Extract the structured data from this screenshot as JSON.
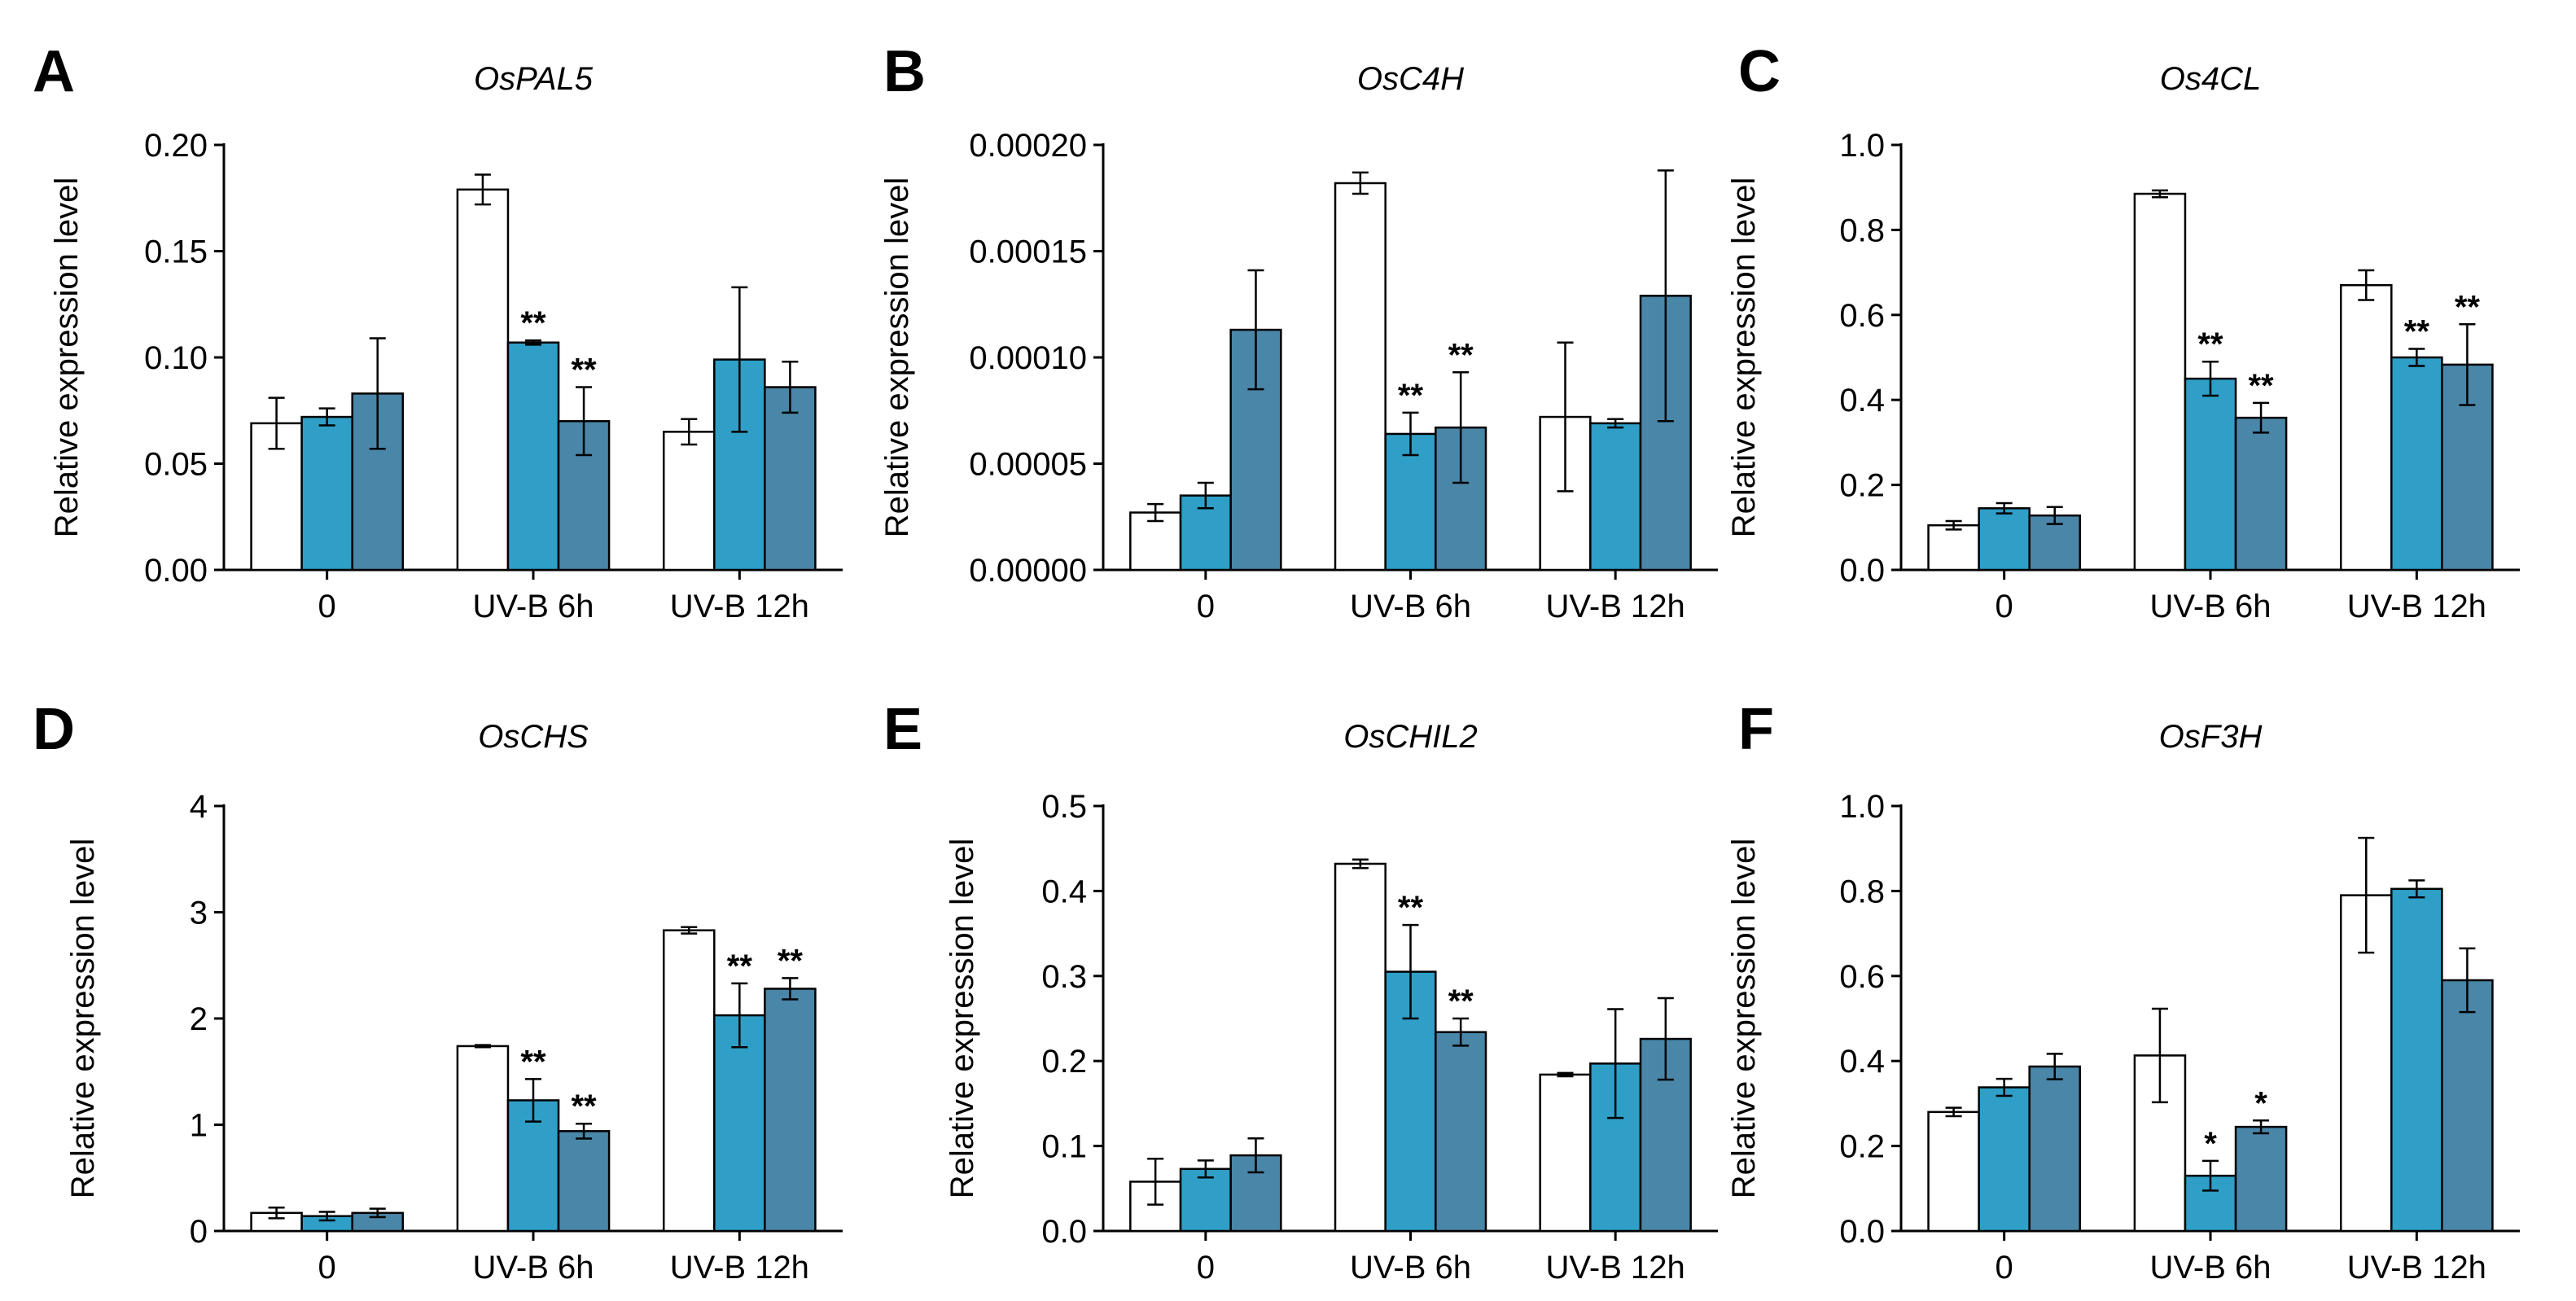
{
  "figure": {
    "series_colors": [
      "#ffffff",
      "#2f9fc7",
      "#4a86a8"
    ],
    "y_axis_title": "Relative expression level"
  },
  "chart_data": [
    {
      "type": "bar",
      "panel": "A",
      "title": "OsPAL5",
      "ylabel": "Relative expression level",
      "categories": [
        "0",
        "UV-B 6h",
        "UV-B 12h"
      ],
      "ylim": [
        0,
        0.2
      ],
      "yticks": [
        "0.00",
        "0.05",
        "0.10",
        "0.15",
        "0.20"
      ],
      "series": [
        {
          "values": [
            0.069,
            0.179,
            0.065
          ],
          "errors": [
            0.012,
            0.007,
            0.006
          ]
        },
        {
          "values": [
            0.072,
            0.107,
            0.099
          ],
          "errors": [
            0.004,
            0.001,
            0.034
          ]
        },
        {
          "values": [
            0.083,
            0.07,
            0.086
          ],
          "errors": [
            0.026,
            0.016,
            0.012
          ]
        }
      ],
      "significance": [
        [
          "",
          "",
          ""
        ],
        [
          "",
          "**",
          ""
        ],
        [
          "",
          "**",
          ""
        ]
      ]
    },
    {
      "type": "bar",
      "panel": "B",
      "title": "OsC4H",
      "ylabel": "Relative expression level",
      "categories": [
        "0",
        "UV-B 6h",
        "UV-B 12h"
      ],
      "ylim": [
        0,
        0.0002
      ],
      "yticks": [
        "0.00000",
        "0.00005",
        "0.00010",
        "0.00015",
        "0.00020"
      ],
      "series": [
        {
          "values": [
            2.7e-05,
            0.000182,
            7.2e-05
          ],
          "errors": [
            4e-06,
            5e-06,
            3.5e-05
          ]
        },
        {
          "values": [
            3.5e-05,
            6.4e-05,
            6.9e-05
          ],
          "errors": [
            6e-06,
            1e-05,
            2e-06
          ]
        },
        {
          "values": [
            0.000113,
            6.7e-05,
            0.000129
          ],
          "errors": [
            2.8e-05,
            2.6e-05,
            5.9e-05
          ]
        }
      ],
      "significance": [
        [
          "",
          "",
          ""
        ],
        [
          "",
          "**",
          ""
        ],
        [
          "",
          "**",
          ""
        ]
      ]
    },
    {
      "type": "bar",
      "panel": "C",
      "title": "Os4CL",
      "ylabel": "Relative expression level",
      "categories": [
        "0",
        "UV-B 6h",
        "UV-B 12h"
      ],
      "ylim": [
        0,
        1.0
      ],
      "yticks": [
        "0.0",
        "0.2",
        "0.4",
        "0.6",
        "0.8",
        "1.0"
      ],
      "series": [
        {
          "values": [
            0.105,
            0.885,
            0.67
          ],
          "errors": [
            0.01,
            0.008,
            0.035
          ]
        },
        {
          "values": [
            0.145,
            0.45,
            0.5
          ],
          "errors": [
            0.012,
            0.04,
            0.02
          ]
        },
        {
          "values": [
            0.128,
            0.358,
            0.483
          ],
          "errors": [
            0.02,
            0.035,
            0.095
          ]
        }
      ],
      "significance": [
        [
          "",
          "",
          ""
        ],
        [
          "",
          "**",
          "**"
        ],
        [
          "",
          "**",
          "**"
        ]
      ]
    },
    {
      "type": "bar",
      "panel": "D",
      "title": "OsCHS",
      "ylabel": "Relative expression level",
      "categories": [
        "0",
        "UV-B 6h",
        "UV-B 12h"
      ],
      "ylim": [
        0,
        4
      ],
      "yticks": [
        "0",
        "1",
        "2",
        "3",
        "4"
      ],
      "series": [
        {
          "values": [
            0.17,
            1.74,
            2.83
          ],
          "errors": [
            0.05,
            0.01,
            0.03
          ]
        },
        {
          "values": [
            0.14,
            1.23,
            2.03
          ],
          "errors": [
            0.04,
            0.2,
            0.3
          ]
        },
        {
          "values": [
            0.17,
            0.94,
            2.28
          ],
          "errors": [
            0.04,
            0.07,
            0.1
          ]
        }
      ],
      "significance": [
        [
          "",
          "",
          ""
        ],
        [
          "",
          "**",
          "**"
        ],
        [
          "",
          "**",
          "**"
        ]
      ]
    },
    {
      "type": "bar",
      "panel": "E",
      "title": "OsCHIL2",
      "ylabel": "Relative expression level",
      "categories": [
        "0",
        "UV-B 6h",
        "UV-B 12h"
      ],
      "ylim": [
        0,
        0.5
      ],
      "yticks": [
        "0.0",
        "0.1",
        "0.2",
        "0.3",
        "0.4",
        "0.5"
      ],
      "series": [
        {
          "values": [
            0.058,
            0.432,
            0.184
          ],
          "errors": [
            0.027,
            0.005,
            0.002
          ]
        },
        {
          "values": [
            0.073,
            0.305,
            0.197
          ],
          "errors": [
            0.01,
            0.055,
            0.064
          ]
        },
        {
          "values": [
            0.089,
            0.234,
            0.226
          ],
          "errors": [
            0.02,
            0.016,
            0.048
          ]
        }
      ],
      "significance": [
        [
          "",
          "",
          ""
        ],
        [
          "",
          "**",
          ""
        ],
        [
          "",
          "**",
          ""
        ]
      ]
    },
    {
      "type": "bar",
      "panel": "F",
      "title": "OsF3H",
      "ylabel": "Relative expression level",
      "categories": [
        "0",
        "UV-B 6h",
        "UV-B 12h"
      ],
      "ylim": [
        0,
        1.0
      ],
      "yticks": [
        "0.0",
        "0.2",
        "0.4",
        "0.6",
        "0.8",
        "1.0"
      ],
      "series": [
        {
          "values": [
            0.28,
            0.413,
            0.79
          ],
          "errors": [
            0.01,
            0.11,
            0.135
          ]
        },
        {
          "values": [
            0.338,
            0.13,
            0.805
          ],
          "errors": [
            0.02,
            0.035,
            0.02
          ]
        },
        {
          "values": [
            0.387,
            0.245,
            0.59
          ],
          "errors": [
            0.03,
            0.015,
            0.075
          ]
        }
      ],
      "significance": [
        [
          "",
          "",
          ""
        ],
        [
          "",
          "*",
          ""
        ],
        [
          "",
          "*",
          ""
        ]
      ]
    }
  ]
}
